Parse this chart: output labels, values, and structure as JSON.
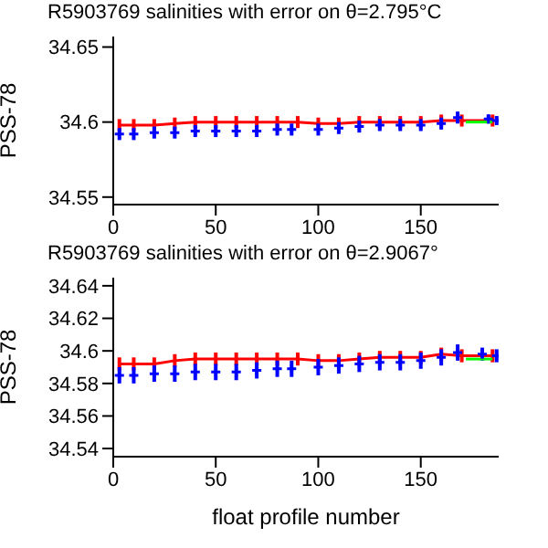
{
  "chart_data": [
    {
      "type": "line",
      "title": "R5903769 salinities with error on θ=2.795°C",
      "ylabel": "PSS-78",
      "xlim": [
        0,
        188
      ],
      "xticks": [
        0,
        50,
        100,
        150
      ],
      "ylim": [
        34.545,
        34.657
      ],
      "yticks": [
        34.55,
        34.6,
        34.65
      ],
      "grid": false,
      "legend": false,
      "series": [
        {
          "color": "#ff0000",
          "x": [
            3,
            10,
            20,
            30,
            40,
            50,
            60,
            70,
            80,
            90,
            100,
            110,
            120,
            130,
            140,
            150,
            160,
            170,
            185
          ],
          "values": [
            34.598,
            34.598,
            34.598,
            34.599,
            34.6,
            34.6,
            34.6,
            34.6,
            34.6,
            34.6,
            34.599,
            34.599,
            34.6,
            34.6,
            34.6,
            34.6,
            34.601,
            34.601,
            34.601
          ],
          "errors": [
            0.004,
            0.004,
            0.004,
            0.004,
            0.004,
            0.004,
            0.004,
            0.004,
            0.004,
            0.004,
            0.004,
            0.004,
            0.004,
            0.004,
            0.004,
            0.004,
            0.004,
            0.004,
            0.004
          ]
        },
        {
          "type": "scatter",
          "marker": "cross",
          "color": "#0000ff",
          "x": [
            3,
            10,
            20,
            30,
            40,
            50,
            60,
            70,
            80,
            87,
            100,
            110,
            120,
            130,
            140,
            150,
            160,
            168,
            183,
            187
          ],
          "values": [
            34.592,
            34.592,
            34.593,
            34.593,
            34.594,
            34.594,
            34.594,
            34.594,
            34.595,
            34.595,
            34.595,
            34.596,
            34.597,
            34.598,
            34.598,
            34.598,
            34.599,
            34.603,
            34.602,
            34.601
          ],
          "errors": [
            0.004,
            0.004,
            0.004,
            0.004,
            0.004,
            0.004,
            0.004,
            0.004,
            0.004,
            0.004,
            0.004,
            0.004,
            0.004,
            0.004,
            0.004,
            0.004,
            0.004,
            0.004,
            0.003,
            0.003
          ]
        },
        {
          "color": "#00ff00",
          "x": [
            172,
            185
          ],
          "values": [
            34.6,
            34.6
          ]
        }
      ]
    },
    {
      "type": "line",
      "title": "R5903769 salinities with error on θ=2.9067°",
      "xlabel": "float profile number",
      "ylabel": "PSS-78",
      "xlim": [
        0,
        188
      ],
      "xticks": [
        0,
        50,
        100,
        150
      ],
      "ylim": [
        34.535,
        34.645
      ],
      "yticks": [
        34.54,
        34.56,
        34.58,
        34.6,
        34.62,
        34.64
      ],
      "grid": false,
      "legend": false,
      "series": [
        {
          "color": "#ff0000",
          "x": [
            3,
            10,
            20,
            30,
            40,
            50,
            60,
            70,
            80,
            90,
            100,
            110,
            120,
            130,
            140,
            150,
            160,
            170,
            185
          ],
          "values": [
            34.592,
            34.592,
            34.592,
            34.594,
            34.595,
            34.595,
            34.595,
            34.595,
            34.595,
            34.595,
            34.594,
            34.594,
            34.595,
            34.596,
            34.596,
            34.596,
            34.598,
            34.597,
            34.597
          ],
          "errors": [
            0.004,
            0.004,
            0.004,
            0.004,
            0.004,
            0.004,
            0.004,
            0.004,
            0.004,
            0.004,
            0.004,
            0.004,
            0.004,
            0.004,
            0.004,
            0.004,
            0.004,
            0.004,
            0.004
          ]
        },
        {
          "type": "scatter",
          "marker": "cross",
          "color": "#0000ff",
          "x": [
            3,
            10,
            20,
            30,
            40,
            50,
            60,
            70,
            80,
            87,
            100,
            110,
            120,
            130,
            140,
            150,
            160,
            168,
            180,
            187
          ],
          "values": [
            34.585,
            34.585,
            34.586,
            34.586,
            34.587,
            34.587,
            34.587,
            34.588,
            34.589,
            34.589,
            34.59,
            34.591,
            34.592,
            34.593,
            34.593,
            34.594,
            34.596,
            34.599,
            34.598,
            34.597
          ],
          "errors": [
            0.005,
            0.005,
            0.005,
            0.005,
            0.005,
            0.005,
            0.005,
            0.005,
            0.005,
            0.005,
            0.005,
            0.005,
            0.005,
            0.005,
            0.005,
            0.005,
            0.005,
            0.005,
            0.004,
            0.004
          ]
        },
        {
          "color": "#00ff00",
          "x": [
            172,
            185
          ],
          "values": [
            34.595,
            34.595
          ]
        }
      ]
    }
  ]
}
